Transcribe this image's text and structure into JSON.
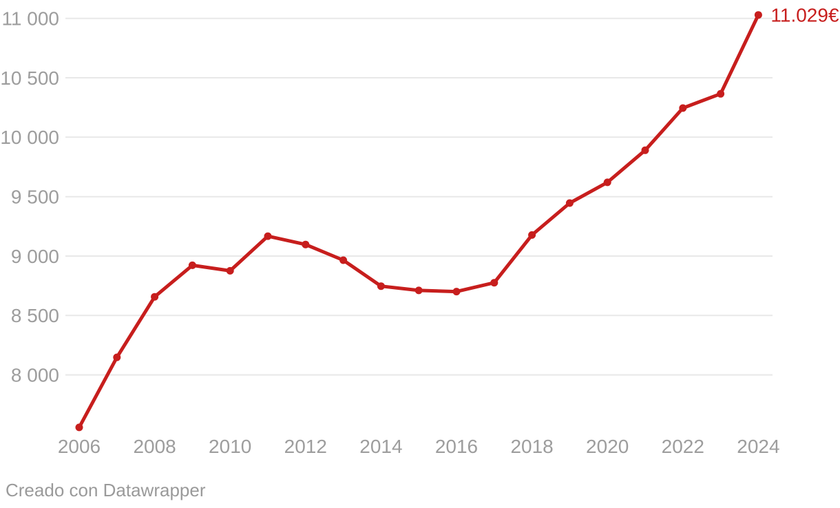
{
  "chart_data": {
    "type": "line",
    "title": "",
    "xlabel": "",
    "ylabel": "",
    "unit": "€",
    "x": [
      2006,
      2007,
      2008,
      2009,
      2010,
      2011,
      2012,
      2013,
      2014,
      2015,
      2016,
      2017,
      2018,
      2019,
      2020,
      2021,
      2022,
      2023,
      2024
    ],
    "values": [
      7558,
      8148,
      8657,
      8922,
      8876,
      9167,
      9097,
      8965,
      8747,
      8711,
      8701,
      8776,
      9177,
      9446,
      9620,
      9890,
      10245,
      10365,
      11029
    ],
    "end_label": "11.029€",
    "xticks": [
      2006,
      2008,
      2010,
      2012,
      2014,
      2016,
      2018,
      2020,
      2022,
      2024
    ],
    "xtick_labels": [
      "2006",
      "2008",
      "2010",
      "2012",
      "2014",
      "2016",
      "2018",
      "2020",
      "2022",
      "2024"
    ],
    "yticks": [
      8000,
      8500,
      9000,
      9500,
      10000,
      10500,
      11000
    ],
    "ytick_labels": [
      "8 000",
      "8 500",
      "9 000",
      "9 500",
      "10 000",
      "10 500",
      "11 000"
    ],
    "ylim": [
      7430,
      11150
    ],
    "grid": true,
    "legend": "none",
    "colors": {
      "line": "#c71e1d",
      "point": "#c71e1d",
      "end_label": "#c71e1d",
      "grid": "#e8e8e8",
      "tick_text": "#9d9d9d"
    }
  },
  "footer": {
    "attribution": "Creado con Datawrapper"
  }
}
